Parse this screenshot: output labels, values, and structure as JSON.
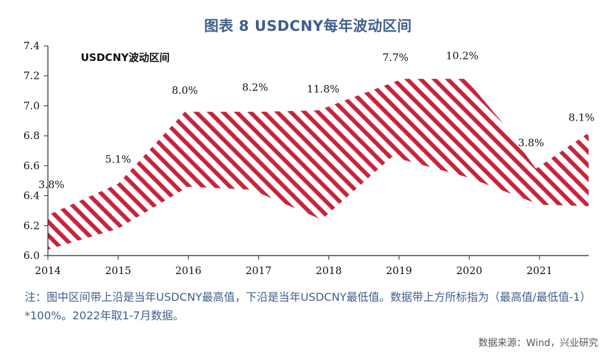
{
  "title": "图表 8 USDCNY每年波动区间",
  "note": "注：图中区间带上沿是当年USDCNY最高值，下沿是当年USDCNY最低值。数据带上方所标指为（最高值/最低值-1）*100%。2022年取1-7月数据。",
  "source": "数据来源：Wind，兴业研究",
  "chart_data": {
    "type": "area",
    "title": "图表 8 USDCNY每年波动区间",
    "series_label": "USDCNY波动区间",
    "colors": {
      "band": "#c8243c",
      "axis": "#222222"
    },
    "ylim": [
      6.0,
      7.4
    ],
    "yticks": [
      "6.0",
      "6.2",
      "6.4",
      "6.6",
      "6.8",
      "7.0",
      "7.2",
      "7.4"
    ],
    "xticks": [
      "2014",
      "2015",
      "2016",
      "2017",
      "2018",
      "2019",
      "2020",
      "2021"
    ],
    "xlim": [
      2014,
      2021.7
    ],
    "upper": [
      [
        2014,
        6.27
      ],
      [
        2015,
        6.48
      ],
      [
        2015.95,
        6.96
      ],
      [
        2017,
        6.96
      ],
      [
        2017.85,
        6.97
      ],
      [
        2019.05,
        7.18
      ],
      [
        2019.95,
        7.18
      ],
      [
        2020.45,
        6.9
      ],
      [
        2020.95,
        6.58
      ],
      [
        2021.7,
        6.82
      ]
    ],
    "lower": [
      [
        2014,
        6.04
      ],
      [
        2015,
        6.18
      ],
      [
        2016,
        6.46
      ],
      [
        2016.9,
        6.44
      ],
      [
        2017.9,
        6.24
      ],
      [
        2018.9,
        6.66
      ],
      [
        2020,
        6.52
      ],
      [
        2021,
        6.34
      ],
      [
        2021.7,
        6.33
      ]
    ],
    "pct_labels": [
      {
        "x": 2014.05,
        "y": 6.45,
        "text": "3.8%"
      },
      {
        "x": 2015.0,
        "y": 6.62,
        "text": "5.1%"
      },
      {
        "x": 2015.95,
        "y": 7.08,
        "text": "8.0%"
      },
      {
        "x": 2016.95,
        "y": 7.1,
        "text": "8.2%"
      },
      {
        "x": 2017.92,
        "y": 7.09,
        "text": "11.8%"
      },
      {
        "x": 2018.95,
        "y": 7.3,
        "text": "7.7%"
      },
      {
        "x": 2019.9,
        "y": 7.31,
        "text": "10.2%"
      },
      {
        "x": 2020.88,
        "y": 6.73,
        "text": "3.8%"
      },
      {
        "x": 2021.6,
        "y": 6.9,
        "text": "8.1%"
      }
    ]
  }
}
